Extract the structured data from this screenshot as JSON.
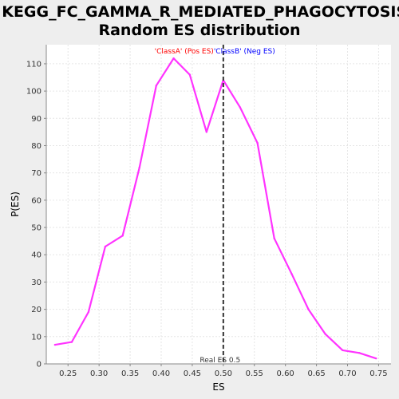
{
  "chart_data": {
    "type": "line",
    "title": "KEGG_FC_GAMMA_R_MEDIATED_PHAGOCYTOSIS:",
    "subtitle": "Random ES distribution",
    "xlabel": "ES",
    "ylabel": "P(ES)",
    "xlim": [
      0.215,
      0.77
    ],
    "ylim": [
      0,
      117
    ],
    "x_ticks": [
      0.25,
      0.3,
      0.35,
      0.4,
      0.45,
      0.5,
      0.55,
      0.6,
      0.65,
      0.7,
      0.75
    ],
    "x_tick_labels": [
      "0.25",
      "0.30",
      "0.35",
      "0.40",
      "0.45",
      "0.50",
      "0.55",
      "0.60",
      "0.65",
      "0.70",
      "0.75"
    ],
    "y_ticks": [
      0,
      10,
      20,
      30,
      40,
      50,
      60,
      70,
      80,
      90,
      100,
      110
    ],
    "y_tick_labels": [
      "0",
      "10",
      "20",
      "30",
      "40",
      "50",
      "60",
      "70",
      "80",
      "90",
      "100",
      "110"
    ],
    "grid": true,
    "series": [
      {
        "color": "#ff33ff",
        "x": [
          0.229,
          0.256,
          0.283,
          0.31,
          0.338,
          0.365,
          0.392,
          0.42,
          0.446,
          0.473,
          0.5,
          0.527,
          0.555,
          0.582,
          0.61,
          0.637,
          0.664,
          0.692,
          0.719,
          0.746
        ],
        "y": [
          7,
          8,
          19,
          43,
          47,
          72,
          102,
          112,
          106,
          85,
          104,
          94,
          81,
          46,
          33,
          20,
          11,
          5,
          4,
          2
        ]
      }
    ],
    "annotations": {
      "class_a_label": "'ClassA' (Pos ES)",
      "class_a_color": "#ff0000",
      "class_b_label": "'ClassB' (Neg ES)",
      "class_b_color": "#0000ff",
      "real_es_x": 0.5,
      "real_es_label": "Real ES 0.5"
    }
  }
}
